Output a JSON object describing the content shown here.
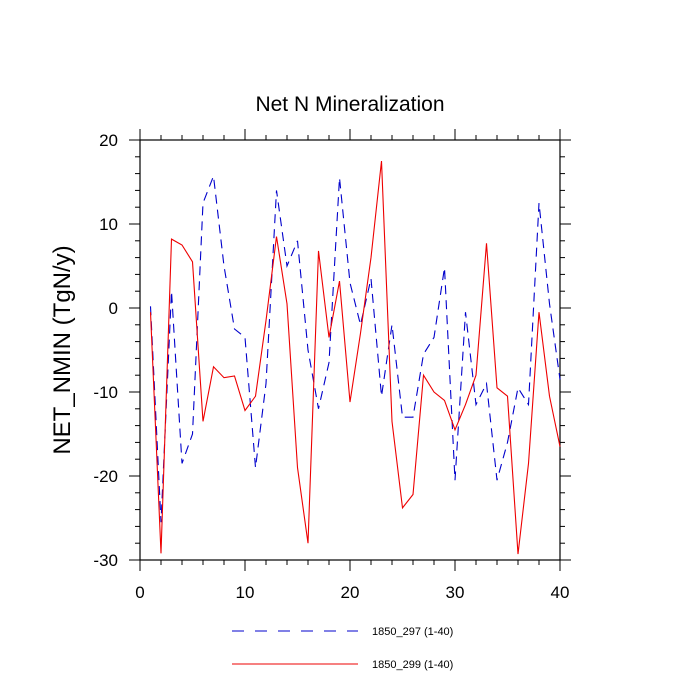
{
  "chart_data": {
    "type": "line",
    "title": "Net N Mineralization",
    "xlabel": "",
    "ylabel": "NET_NMIN  (TgN/y)",
    "xlim": [
      0,
      40
    ],
    "ylim": [
      -30,
      20
    ],
    "xticks": [
      0,
      10,
      20,
      30,
      40
    ],
    "yticks": [
      -30,
      -20,
      -10,
      0,
      10,
      20
    ],
    "grid": false,
    "legend_position": "bottom-center",
    "x": [
      1,
      2,
      3,
      4,
      5,
      6,
      7,
      8,
      9,
      10,
      11,
      12,
      13,
      14,
      15,
      16,
      17,
      18,
      19,
      20,
      21,
      22,
      23,
      24,
      25,
      26,
      27,
      28,
      29,
      30,
      31,
      32,
      33,
      34,
      35,
      36,
      37,
      38,
      39,
      40
    ],
    "series": [
      {
        "name": "1850_297 (1-40)",
        "color": "#0000cc",
        "dash": "dashed",
        "values": [
          0.2,
          -25.5,
          2.0,
          -18.5,
          -15.0,
          12.5,
          15.7,
          5.0,
          -2.5,
          -3.5,
          -19.0,
          -9.0,
          14.0,
          5.0,
          8.0,
          -5.0,
          -12.0,
          -6.5,
          15.5,
          3.0,
          -2.0,
          3.5,
          -10.5,
          -2.0,
          -13.0,
          -13.0,
          -5.5,
          -3.5,
          4.8,
          -20.5,
          -0.5,
          -11.5,
          -9.0,
          -20.5,
          -16.0,
          -9.5,
          -11.5,
          12.5,
          0.5,
          -8.5
        ]
      },
      {
        "name": "1850_299 (1-40)",
        "color": "#ee0000",
        "dash": "solid",
        "values": [
          -0.5,
          -29.2,
          8.2,
          7.5,
          5.5,
          -13.5,
          -7.0,
          -8.3,
          -8.1,
          -12.2,
          -10.5,
          -1.5,
          8.5,
          0.5,
          -19.0,
          -28.0,
          6.8,
          -3.5,
          3.2,
          -11.2,
          -3.0,
          6.0,
          17.5,
          -13.5,
          -23.8,
          -22.2,
          -8.0,
          -10.0,
          -11.0,
          -14.5,
          -11.5,
          -8.0,
          7.7,
          -9.5,
          -10.5,
          -29.3,
          -18.5,
          -0.5,
          -10.5,
          -16.5
        ]
      }
    ]
  }
}
